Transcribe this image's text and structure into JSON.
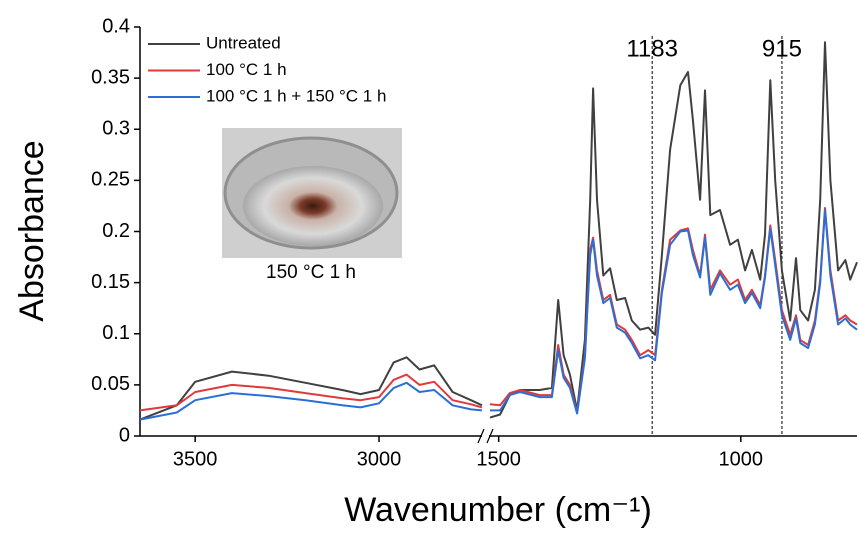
{
  "chart_data": {
    "type": "line",
    "x_label": "Wavenumber (cm⁻¹)",
    "y_label": "Absorbance",
    "xlim": [
      3650,
      760
    ],
    "x_break": [
      2720,
      1520
    ],
    "xticks": [
      3500,
      3000,
      1500,
      1000
    ],
    "ylim": [
      0,
      0.4
    ],
    "yticks": [
      0,
      0.05,
      0.1,
      0.15,
      0.2,
      0.25,
      0.3,
      0.35,
      0.4
    ],
    "legend": "upper left",
    "vlines": [
      1183,
      915
    ],
    "inset_caption": "150 °C 1 h",
    "x": [
      3650,
      3550,
      3500,
      3400,
      3300,
      3200,
      3100,
      3050,
      3000,
      2960,
      2925,
      2890,
      2850,
      2800,
      2750,
      2720,
      1518,
      1497,
      1477,
      1456,
      1415,
      1390,
      1377,
      1366,
      1353,
      1338,
      1322,
      1311,
      1305,
      1297,
      1284,
      1270,
      1256,
      1239,
      1225,
      1208,
      1191,
      1177,
      1163,
      1146,
      1125,
      1109,
      1099,
      1084,
      1074,
      1063,
      1043,
      1022,
      1006,
      991,
      977,
      960,
      950,
      939,
      929,
      915,
      898,
      886,
      877,
      861,
      847,
      836,
      826,
      815,
      799,
      784,
      774,
      760
    ],
    "series": [
      {
        "name": "Untreated",
        "color": "#404040",
        "values": [
          0.016,
          0.03,
          0.053,
          0.063,
          0.059,
          0.052,
          0.045,
          0.041,
          0.045,
          0.072,
          0.077,
          0.065,
          0.069,
          0.043,
          0.035,
          0.03,
          0.018,
          0.021,
          0.04,
          0.045,
          0.045,
          0.047,
          0.133,
          0.079,
          0.06,
          0.025,
          0.094,
          0.231,
          0.34,
          0.231,
          0.157,
          0.164,
          0.133,
          0.135,
          0.113,
          0.104,
          0.106,
          0.099,
          0.177,
          0.28,
          0.343,
          0.356,
          0.309,
          0.231,
          0.338,
          0.216,
          0.221,
          0.187,
          0.192,
          0.162,
          0.182,
          0.153,
          0.197,
          0.348,
          0.25,
          0.162,
          0.113,
          0.174,
          0.123,
          0.113,
          0.143,
          0.231,
          0.385,
          0.25,
          0.162,
          0.172,
          0.153,
          0.17
        ]
      },
      {
        "name": "100 °C 1 h",
        "color": "#e0393c",
        "values": [
          0.025,
          0.03,
          0.043,
          0.05,
          0.047,
          0.042,
          0.037,
          0.035,
          0.038,
          0.055,
          0.06,
          0.05,
          0.053,
          0.035,
          0.031,
          0.028,
          0.031,
          0.03,
          0.042,
          0.045,
          0.04,
          0.04,
          0.089,
          0.06,
          0.05,
          0.023,
          0.079,
          0.182,
          0.194,
          0.162,
          0.133,
          0.138,
          0.109,
          0.104,
          0.094,
          0.079,
          0.084,
          0.079,
          0.143,
          0.192,
          0.201,
          0.203,
          0.182,
          0.157,
          0.197,
          0.143,
          0.162,
          0.148,
          0.153,
          0.133,
          0.143,
          0.128,
          0.157,
          0.206,
          0.172,
          0.123,
          0.099,
          0.118,
          0.094,
          0.089,
          0.113,
          0.153,
          0.223,
          0.162,
          0.113,
          0.118,
          0.113,
          0.109
        ]
      },
      {
        "name": "100 °C 1 h + 150 °C 1 h",
        "color": "#2a6fd6",
        "values": [
          0.016,
          0.023,
          0.035,
          0.042,
          0.039,
          0.035,
          0.03,
          0.028,
          0.032,
          0.047,
          0.052,
          0.043,
          0.045,
          0.03,
          0.026,
          0.025,
          0.025,
          0.025,
          0.04,
          0.043,
          0.038,
          0.038,
          0.084,
          0.057,
          0.047,
          0.022,
          0.076,
          0.177,
          0.192,
          0.157,
          0.13,
          0.135,
          0.106,
          0.101,
          0.091,
          0.076,
          0.079,
          0.074,
          0.14,
          0.187,
          0.2,
          0.201,
          0.177,
          0.155,
          0.194,
          0.138,
          0.159,
          0.143,
          0.148,
          0.13,
          0.14,
          0.125,
          0.155,
          0.203,
          0.167,
          0.118,
          0.094,
          0.115,
          0.091,
          0.086,
          0.109,
          0.15,
          0.221,
          0.157,
          0.109,
          0.115,
          0.109,
          0.104
        ]
      }
    ]
  }
}
